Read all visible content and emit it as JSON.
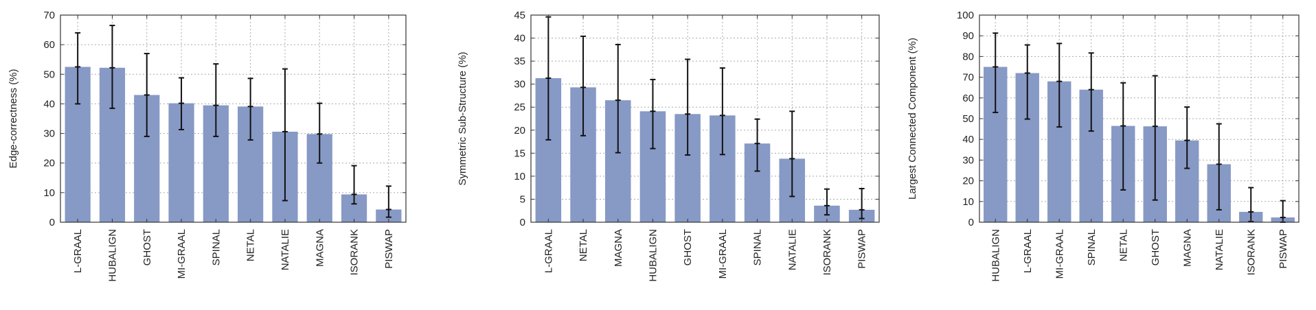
{
  "colors": {
    "bar": "#8799c5",
    "error": "#111111",
    "grid": "#a8a8a8",
    "axis": "#333333"
  },
  "chart_data": [
    {
      "type": "bar",
      "title": "",
      "xlabel": "",
      "ylabel": "Edge-correctness (%)",
      "ylim": [
        0,
        70
      ],
      "yticks": [
        0,
        10,
        20,
        30,
        40,
        50,
        60,
        70
      ],
      "grid": true,
      "categories": [
        "L-GRAAL",
        "HUBALIGN",
        "GHOST",
        "MI-GRAAL",
        "SPINAL",
        "NETAL",
        "NATALIE",
        "MAGNA",
        "ISORANK",
        "PISWAP"
      ],
      "values": [
        52.5,
        52.2,
        43.0,
        40.2,
        39.5,
        39.1,
        30.6,
        29.8,
        9.4,
        4.3
      ],
      "error_low": [
        40.0,
        38.5,
        29.0,
        31.3,
        29.0,
        27.8,
        7.3,
        20.0,
        6.2,
        1.7
      ],
      "error_high": [
        64.0,
        66.5,
        57.0,
        48.8,
        53.5,
        48.6,
        51.8,
        40.2,
        19.1,
        12.2
      ]
    },
    {
      "type": "bar",
      "title": "",
      "xlabel": "",
      "ylabel": "Symmetric Sub-Structure (%)",
      "ylim": [
        0,
        45
      ],
      "yticks": [
        0,
        5,
        10,
        15,
        20,
        25,
        30,
        35,
        40,
        45
      ],
      "grid": true,
      "categories": [
        "L-GRAAL",
        "NETAL",
        "MAGNA",
        "HUBALIGN",
        "GHOST",
        "MI-GRAAL",
        "SPINAL",
        "NATALIE",
        "ISORANK",
        "PISWAP"
      ],
      "values": [
        31.3,
        29.3,
        26.5,
        24.1,
        23.5,
        23.2,
        17.1,
        13.8,
        3.6,
        2.7
      ],
      "error_low": [
        17.9,
        18.8,
        15.1,
        16.0,
        14.6,
        14.7,
        11.1,
        5.6,
        1.6,
        0.8
      ],
      "error_high": [
        44.6,
        40.4,
        38.6,
        31.0,
        35.4,
        33.5,
        22.4,
        24.1,
        7.2,
        7.3
      ]
    },
    {
      "type": "bar",
      "title": "",
      "xlabel": "",
      "ylabel": "Largest Connected Component (%)",
      "ylim": [
        0,
        100
      ],
      "yticks": [
        0,
        10,
        20,
        30,
        40,
        50,
        60,
        70,
        80,
        90,
        100
      ],
      "grid": true,
      "categories": [
        "HUBALIGN",
        "L-GRAAL",
        "MI-GRAAL",
        "SPINAL",
        "NETAL",
        "GHOST",
        "MAGNA",
        "NATALIE",
        "ISORANK",
        "PISWAP"
      ],
      "values": [
        75.0,
        72.0,
        68.0,
        64.0,
        46.5,
        46.3,
        39.5,
        28.0,
        5.0,
        2.3
      ],
      "error_low": [
        53.0,
        49.8,
        46.0,
        44.0,
        15.6,
        10.7,
        26.0,
        6.0,
        0.3,
        0.0
      ],
      "error_high": [
        91.3,
        85.6,
        86.3,
        81.7,
        67.3,
        70.7,
        55.6,
        47.5,
        16.7,
        10.4
      ]
    }
  ]
}
